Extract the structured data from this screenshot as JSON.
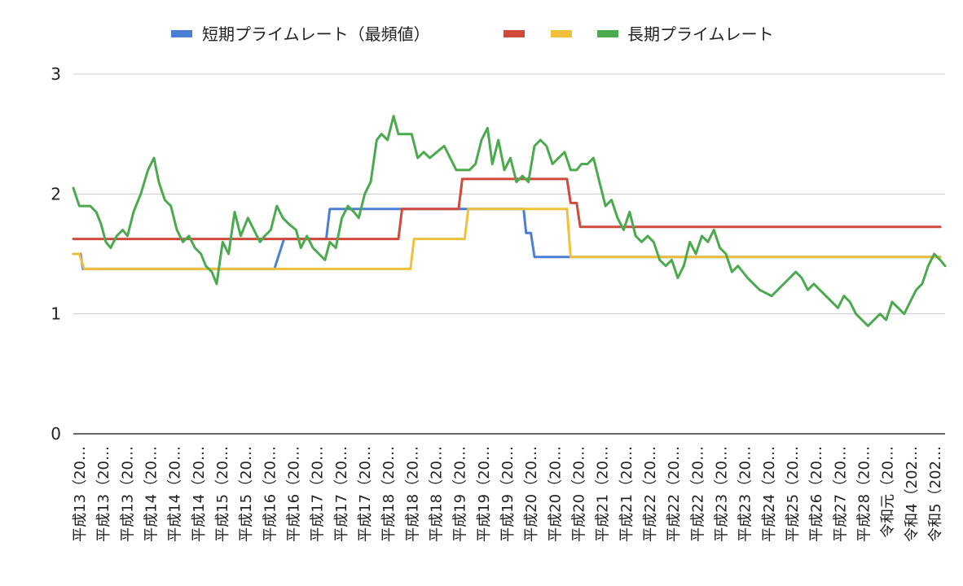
{
  "chart_data": {
    "type": "line",
    "title": "",
    "xlabel": "",
    "ylabel": "",
    "ylim": [
      0,
      3
    ],
    "yticks": [
      0,
      1,
      2,
      3
    ],
    "grid": true,
    "legend_position": "top",
    "categories": [
      "平成13（20…",
      "平成13（20…",
      "平成13（20…",
      "平成14（20…",
      "平成14（20…",
      "平成14（20…",
      "平成15（20…",
      "平成15（20…",
      "平成16（20…",
      "平成16（20…",
      "平成17（20…",
      "平成17（20…",
      "平成17（20…",
      "平成18（20…",
      "平成18（20…",
      "平成18（20…",
      "平成19（20…",
      "平成19（20…",
      "平成19（20…",
      "平成20（20…",
      "平成20（20…",
      "平成20（20…",
      "平成21（20…",
      "平成21（20…",
      "平成22（20…",
      "平成22（20…",
      "平成22（20…",
      "平成23（20…",
      "平成23（20…",
      "平成24（20…",
      "平成25（20…",
      "平成26（20…",
      "平成27（20…",
      "平成28（20…",
      "令和元（20…",
      "令和4（202…",
      "令和5（202…"
    ],
    "series": [
      {
        "name": "短期プライムレート（最頻値）",
        "color": "#4a7fd4",
        "points": [
          [
            0,
            1.5
          ],
          [
            0.6,
            1.5
          ],
          [
            0.8,
            1.375
          ],
          [
            16.7,
            1.375
          ],
          [
            17.5,
            1.625
          ],
          [
            21.0,
            1.625
          ],
          [
            21.3,
            1.875
          ],
          [
            32.0,
            1.875
          ],
          [
            32.0,
            1.875
          ],
          [
            37.4,
            1.875
          ],
          [
            37.6,
            1.675
          ],
          [
            38.0,
            1.675
          ],
          [
            38.3,
            1.475
          ],
          [
            72,
            1.475
          ]
        ]
      },
      {
        "name": "",
        "color": "#d04a3c",
        "points": [
          [
            0,
            1.625
          ],
          [
            27.0,
            1.625
          ],
          [
            27.3,
            1.875
          ],
          [
            32.0,
            1.875
          ],
          [
            32.3,
            2.125
          ],
          [
            41.0,
            2.125
          ],
          [
            41.3,
            1.925
          ],
          [
            41.8,
            1.925
          ],
          [
            42.1,
            1.725
          ],
          [
            72,
            1.725
          ]
        ]
      },
      {
        "name": "",
        "color": "#f0c03c",
        "points": [
          [
            0,
            1.5
          ],
          [
            0.5,
            1.5
          ],
          [
            0.9,
            1.375
          ],
          [
            28.0,
            1.375
          ],
          [
            28.3,
            1.625
          ],
          [
            32.5,
            1.625
          ],
          [
            32.8,
            1.875
          ],
          [
            41.0,
            1.875
          ],
          [
            41.3,
            1.475
          ],
          [
            72,
            1.475
          ]
        ]
      },
      {
        "name": "長期プライムレート",
        "color": "#4caa4e",
        "points": [
          [
            0,
            2.05
          ],
          [
            0.5,
            1.9
          ],
          [
            1.4,
            1.9
          ],
          [
            1.9,
            1.85
          ],
          [
            2.3,
            1.75
          ],
          [
            2.7,
            1.6
          ],
          [
            3.1,
            1.55
          ],
          [
            3.6,
            1.65
          ],
          [
            4.1,
            1.7
          ],
          [
            4.5,
            1.65
          ],
          [
            5.0,
            1.85
          ],
          [
            5.6,
            2.0
          ],
          [
            6.2,
            2.2
          ],
          [
            6.7,
            2.3
          ],
          [
            7.1,
            2.1
          ],
          [
            7.6,
            1.95
          ],
          [
            8.1,
            1.9
          ],
          [
            8.6,
            1.7
          ],
          [
            9.1,
            1.6
          ],
          [
            9.6,
            1.65
          ],
          [
            10.1,
            1.55
          ],
          [
            10.6,
            1.5
          ],
          [
            11.0,
            1.4
          ],
          [
            11.5,
            1.35
          ],
          [
            11.9,
            1.25
          ],
          [
            12.4,
            1.6
          ],
          [
            12.9,
            1.5
          ],
          [
            13.4,
            1.85
          ],
          [
            13.9,
            1.65
          ],
          [
            14.5,
            1.8
          ],
          [
            15.0,
            1.7
          ],
          [
            15.5,
            1.6
          ],
          [
            15.9,
            1.65
          ],
          [
            16.4,
            1.7
          ],
          [
            16.9,
            1.9
          ],
          [
            17.4,
            1.8
          ],
          [
            17.9,
            1.75
          ],
          [
            18.5,
            1.7
          ],
          [
            18.9,
            1.55
          ],
          [
            19.4,
            1.65
          ],
          [
            19.9,
            1.55
          ],
          [
            20.4,
            1.5
          ],
          [
            20.9,
            1.45
          ],
          [
            21.3,
            1.6
          ],
          [
            21.8,
            1.55
          ],
          [
            22.3,
            1.8
          ],
          [
            22.8,
            1.9
          ],
          [
            23.3,
            1.85
          ],
          [
            23.7,
            1.8
          ],
          [
            24.2,
            2.0
          ],
          [
            24.7,
            2.1
          ],
          [
            25.2,
            2.45
          ],
          [
            25.6,
            2.5
          ],
          [
            26.1,
            2.45
          ],
          [
            26.6,
            2.65
          ],
          [
            27.0,
            2.5
          ],
          [
            27.6,
            2.5
          ],
          [
            28.1,
            2.5
          ],
          [
            28.6,
            2.3
          ],
          [
            29.1,
            2.35
          ],
          [
            29.6,
            2.3
          ],
          [
            30.2,
            2.35
          ],
          [
            30.8,
            2.4
          ],
          [
            31.3,
            2.3
          ],
          [
            31.8,
            2.2
          ],
          [
            32.4,
            2.2
          ],
          [
            32.9,
            2.2
          ],
          [
            33.4,
            2.25
          ],
          [
            33.9,
            2.45
          ],
          [
            34.4,
            2.55
          ],
          [
            34.8,
            2.25
          ],
          [
            35.3,
            2.45
          ],
          [
            35.8,
            2.2
          ],
          [
            36.3,
            2.3
          ],
          [
            36.8,
            2.1
          ],
          [
            37.3,
            2.15
          ],
          [
            37.8,
            2.1
          ],
          [
            38.3,
            2.4
          ],
          [
            38.8,
            2.45
          ],
          [
            39.3,
            2.4
          ],
          [
            39.8,
            2.25
          ],
          [
            40.3,
            2.3
          ],
          [
            40.8,
            2.35
          ],
          [
            41.3,
            2.2
          ],
          [
            41.8,
            2.2
          ],
          [
            42.2,
            2.25
          ],
          [
            42.7,
            2.25
          ],
          [
            43.2,
            2.3
          ],
          [
            43.7,
            2.1
          ],
          [
            44.2,
            1.9
          ],
          [
            44.7,
            1.95
          ],
          [
            45.2,
            1.8
          ],
          [
            45.7,
            1.7
          ],
          [
            46.2,
            1.85
          ],
          [
            46.7,
            1.65
          ],
          [
            47.2,
            1.6
          ],
          [
            47.7,
            1.65
          ],
          [
            48.2,
            1.6
          ],
          [
            48.7,
            1.45
          ],
          [
            49.2,
            1.4
          ],
          [
            49.7,
            1.45
          ],
          [
            50.2,
            1.3
          ],
          [
            50.7,
            1.4
          ],
          [
            51.2,
            1.6
          ],
          [
            51.7,
            1.5
          ],
          [
            52.2,
            1.65
          ],
          [
            52.7,
            1.6
          ],
          [
            53.2,
            1.7
          ],
          [
            53.7,
            1.55
          ],
          [
            54.2,
            1.5
          ],
          [
            54.7,
            1.35
          ],
          [
            55.2,
            1.4
          ],
          [
            56.0,
            1.3
          ],
          [
            57.0,
            1.2
          ],
          [
            58.0,
            1.15
          ],
          [
            59.0,
            1.25
          ],
          [
            60.0,
            1.35
          ],
          [
            60.5,
            1.3
          ],
          [
            61.0,
            1.2
          ],
          [
            61.5,
            1.25
          ],
          [
            62.0,
            1.2
          ],
          [
            63.0,
            1.1
          ],
          [
            63.5,
            1.05
          ],
          [
            64.0,
            1.15
          ],
          [
            64.5,
            1.1
          ],
          [
            65.0,
            1.0
          ],
          [
            66.0,
            0.9
          ],
          [
            67.0,
            1.0
          ],
          [
            67.5,
            0.95
          ],
          [
            68.0,
            1.1
          ],
          [
            69.0,
            1.0
          ],
          [
            70.0,
            1.2
          ],
          [
            70.5,
            1.25
          ],
          [
            71.0,
            1.4
          ],
          [
            71.5,
            1.5
          ],
          [
            72.0,
            1.45
          ],
          [
            72.4,
            1.4
          ]
        ]
      }
    ]
  }
}
